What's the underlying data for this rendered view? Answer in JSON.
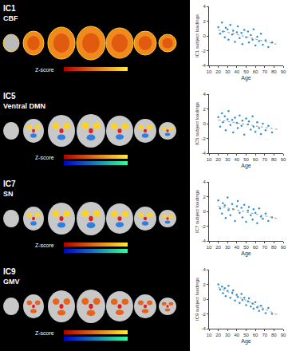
{
  "brain_maps": [
    {
      "label": "IC1",
      "network": "CBF",
      "colorbar_label": "Z-score"
    },
    {
      "label": "IC5",
      "network": "Ventral DMN",
      "colorbar_label": "Z-score"
    },
    {
      "label": "IC7",
      "network": "SN",
      "colorbar_label": "Z-score"
    },
    {
      "label": "IC9",
      "network": "GMV",
      "colorbar_label": "Z-score"
    }
  ],
  "chart_data": [
    {
      "type": "scatter",
      "x_label": "Age",
      "y_label": "IC1 subject loadings",
      "xlim": [
        10,
        90
      ],
      "xticks": [
        10,
        20,
        30,
        40,
        50,
        60,
        70,
        80,
        90
      ],
      "ylim": [
        -4,
        4
      ],
      "yticks": [
        -4,
        -2,
        0,
        2,
        4
      ],
      "grid": false,
      "series": [
        {
          "type": "scatter",
          "marker": "circle",
          "color": "#2b8fd4",
          "x": [
            20,
            22,
            24,
            25,
            27,
            28,
            30,
            31,
            33,
            35,
            36,
            38,
            40,
            41,
            43,
            45,
            46,
            48,
            50,
            52,
            53,
            55,
            57,
            58,
            60,
            62,
            64,
            66,
            68,
            71,
            74,
            78
          ],
          "values": [
            1.2,
            0.3,
            1.8,
            0.6,
            -0.2,
            1.1,
            0.9,
            -0.5,
            1.5,
            0.2,
            0.7,
            -0.8,
            0.5,
            1.3,
            -0.3,
            0.4,
            -1.1,
            0.8,
            -0.2,
            0.6,
            -0.9,
            0.1,
            -0.5,
            0.9,
            -1.3,
            -0.1,
            -0.7,
            0.3,
            -1.2,
            -0.6,
            -1.5,
            -0.9
          ]
        },
        {
          "type": "line",
          "line_style": "dot",
          "color": "#999999",
          "x": [
            20,
            85
          ],
          "values": [
            0.8,
            -1.2
          ]
        }
      ]
    },
    {
      "type": "scatter",
      "x_label": "Age",
      "y_label": "IC5 subject loadings",
      "xlim": [
        10,
        90
      ],
      "xticks": [
        10,
        20,
        30,
        40,
        50,
        60,
        70,
        80,
        90
      ],
      "ylim": [
        -4,
        4
      ],
      "yticks": [
        -4,
        -2,
        0,
        2,
        4
      ],
      "grid": false,
      "series": [
        {
          "type": "scatter",
          "marker": "circle",
          "color": "#2b8fd4",
          "x": [
            20,
            22,
            24,
            25,
            27,
            28,
            30,
            31,
            33,
            35,
            36,
            38,
            40,
            41,
            43,
            45,
            46,
            48,
            50,
            52,
            53,
            55,
            57,
            58,
            60,
            62,
            64,
            66,
            68,
            71,
            74,
            78
          ],
          "values": [
            0.9,
            -0.4,
            1.4,
            0.2,
            1.0,
            -0.9,
            0.6,
            1.7,
            -0.2,
            0.5,
            -1.2,
            0.8,
            0.1,
            -0.6,
            1.1,
            -0.3,
            0.4,
            -1.5,
            0.7,
            -0.1,
            0.3,
            -0.8,
            1.0,
            -0.4,
            -1.1,
            0.2,
            -0.6,
            -1.4,
            0.0,
            -0.9,
            -0.3,
            -1.2
          ]
        },
        {
          "type": "line",
          "line_style": "dot",
          "color": "#999999",
          "x": [
            20,
            85
          ],
          "values": [
            0.5,
            -0.8
          ]
        }
      ]
    },
    {
      "type": "scatter",
      "x_label": "Age",
      "y_label": "IC7 subject loadings",
      "xlim": [
        10,
        90
      ],
      "xticks": [
        10,
        20,
        30,
        40,
        50,
        60,
        70,
        80,
        90
      ],
      "ylim": [
        -4,
        4
      ],
      "yticks": [
        -4,
        -2,
        0,
        2,
        4
      ],
      "grid": false,
      "series": [
        {
          "type": "scatter",
          "marker": "circle",
          "color": "#2b8fd4",
          "x": [
            20,
            22,
            24,
            25,
            27,
            28,
            30,
            31,
            33,
            35,
            36,
            38,
            40,
            41,
            43,
            45,
            46,
            48,
            50,
            52,
            53,
            55,
            57,
            58,
            60,
            62,
            64,
            66,
            68,
            71,
            74,
            78
          ],
          "values": [
            1.5,
            0.4,
            -0.3,
            1.1,
            0.8,
            -0.9,
            1.9,
            0.2,
            -0.5,
            1.0,
            0.3,
            -1.3,
            0.7,
            1.4,
            -0.2,
            0.5,
            -0.8,
            0.9,
            -1.4,
            0.1,
            0.6,
            -0.5,
            -1.1,
            0.3,
            -0.2,
            -1.6,
            0.4,
            -0.7,
            -1.0,
            -0.3,
            -1.3,
            -0.8
          ]
        },
        {
          "type": "line",
          "line_style": "dot",
          "color": "#999999",
          "x": [
            20,
            85
          ],
          "values": [
            0.7,
            -1.0
          ]
        }
      ]
    },
    {
      "type": "scatter",
      "x_label": "Age",
      "y_label": "IC9 subject loadings",
      "xlim": [
        10,
        90
      ],
      "xticks": [
        10,
        20,
        30,
        40,
        50,
        60,
        70,
        80,
        90
      ],
      "ylim": [
        -4,
        4
      ],
      "yticks": [
        -4,
        -2,
        0,
        2,
        4
      ],
      "grid": false,
      "series": [
        {
          "type": "scatter",
          "marker": "circle",
          "color": "#2b8fd4",
          "x": [
            20,
            22,
            24,
            25,
            27,
            28,
            30,
            31,
            33,
            35,
            36,
            38,
            40,
            41,
            43,
            45,
            46,
            48,
            50,
            52,
            53,
            55,
            57,
            58,
            60,
            62,
            64,
            66,
            68,
            71,
            74,
            78
          ],
          "values": [
            2.0,
            1.3,
            1.7,
            0.8,
            1.5,
            0.4,
            1.1,
            1.8,
            0.2,
            0.9,
            1.2,
            -0.2,
            0.6,
            0.3,
            -0.5,
            0.7,
            -0.1,
            0.2,
            -0.8,
            -0.3,
            0.1,
            -1.0,
            -0.6,
            -1.3,
            -0.4,
            -1.1,
            -1.6,
            -0.9,
            -1.4,
            -1.9,
            -1.2,
            -2.0
          ]
        },
        {
          "type": "line",
          "line_style": "dot",
          "color": "#999999",
          "x": [
            20,
            85
          ],
          "values": [
            1.6,
            -2.2
          ]
        }
      ]
    }
  ]
}
